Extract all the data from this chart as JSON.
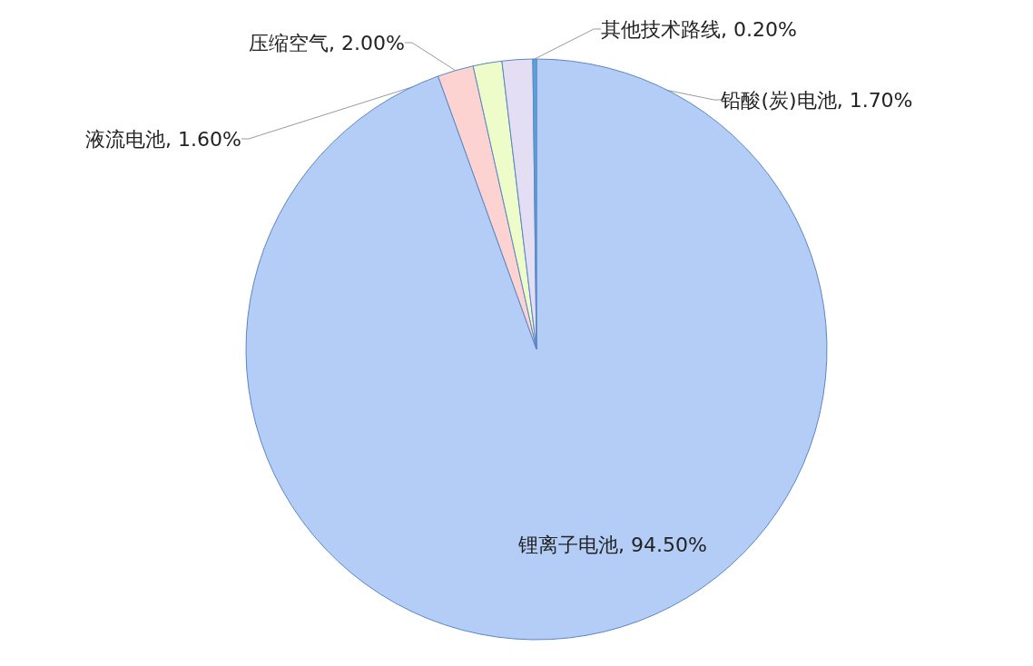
{
  "chart_data": {
    "type": "pie",
    "categories": [
      "锂离子电池",
      "压缩空气",
      "液流电池",
      "铅酸(炭)电池",
      "其他技术路线"
    ],
    "values": [
      94.5,
      2.0,
      1.6,
      1.7,
      0.2
    ],
    "value_labels": [
      "94.50%",
      "2.00%",
      "1.60%",
      "1.70%",
      "0.20%"
    ],
    "colors": [
      "#b3cdf6",
      "#fdd3d1",
      "#eefcc9",
      "#e3def3",
      "#5ba3d8"
    ],
    "legend": false
  }
}
